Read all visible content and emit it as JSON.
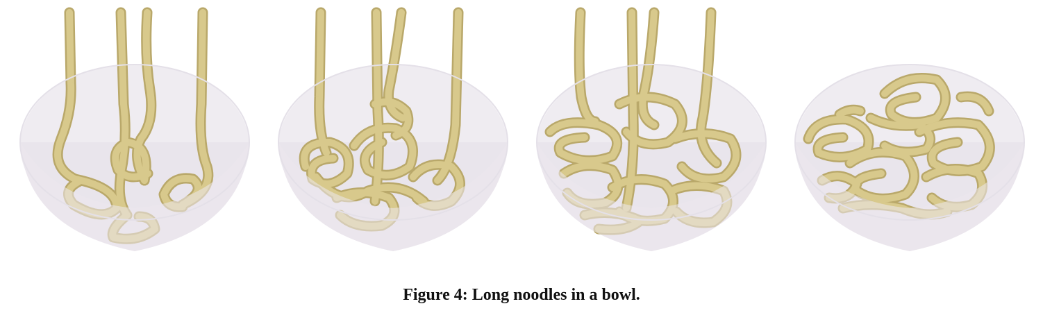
{
  "figure": {
    "caption": "Figure 4: Long noodles in a bowl.",
    "panel_count": 4,
    "noodle_color": "#d8c98c",
    "noodle_shadow": "#b9a86a",
    "noodle_highlight": "#efe6bd",
    "bowl_color": "#ece8ee",
    "bowl_rim_color": "#f6f3f7"
  }
}
